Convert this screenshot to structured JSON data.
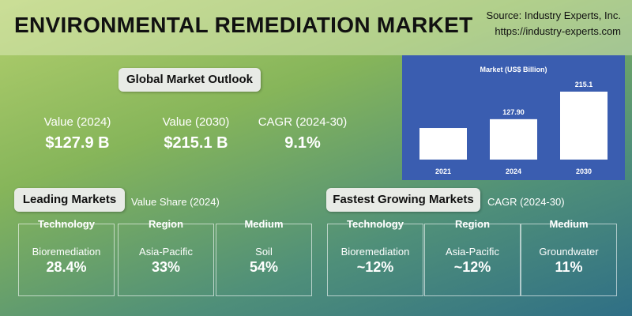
{
  "header": {
    "title": "ENVIRONMENTAL REMEDIATION MARKET",
    "source": "Source: Industry Experts, Inc.",
    "url": "https://industry-experts.com"
  },
  "outlook": {
    "title": "Global Market Outlook",
    "stats": [
      {
        "label": "Value (2024)",
        "value": "$127.9 B"
      },
      {
        "label": "Value (2030)",
        "value": "$215.1 B"
      },
      {
        "label": "CAGR (2024-30)",
        "value": "9.1%"
      }
    ]
  },
  "leading": {
    "title": "Leading Markets",
    "subtitle": "Value Share (2024)",
    "cards": [
      {
        "heading": "Technology",
        "name": "Bioremediation",
        "value": "28.4%"
      },
      {
        "heading": "Region",
        "name": "Asia-Pacific",
        "value": "33%"
      },
      {
        "heading": "Medium",
        "name": "Soil",
        "value": "54%"
      }
    ]
  },
  "fastest": {
    "title": "Fastest Growing Markets",
    "subtitle": "CAGR (2024-30)",
    "cards": [
      {
        "heading": "Technology",
        "name": "Bioremediation",
        "value": "~12%"
      },
      {
        "heading": "Region",
        "name": "Asia-Pacific",
        "value": "~12%"
      },
      {
        "heading": "Medium",
        "name": "Groundwater",
        "value": "11%"
      }
    ]
  },
  "chart_data": {
    "type": "bar",
    "title": "Market (US$ Billion)",
    "categories": [
      "2021",
      "2024",
      "2030"
    ],
    "values": [
      100,
      127.9,
      215.1
    ],
    "value_labels": [
      null,
      "127.90",
      "215.1"
    ],
    "color": "#ffffff"
  }
}
